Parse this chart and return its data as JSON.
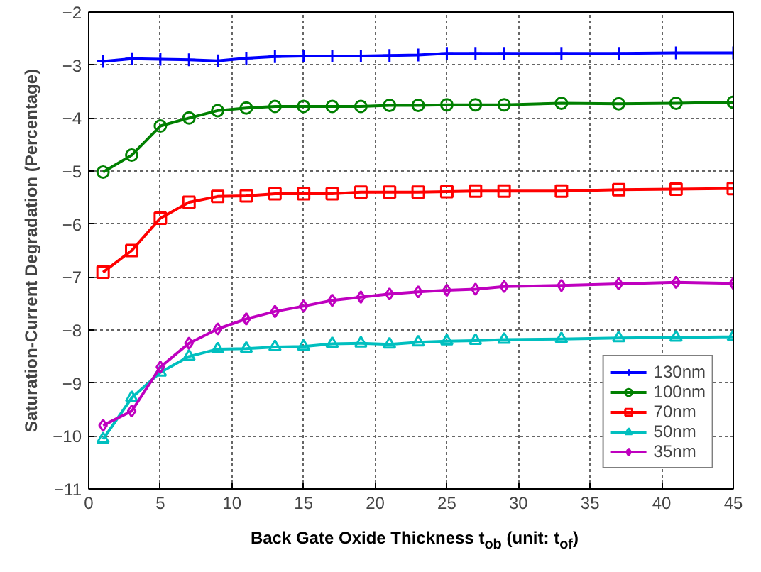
{
  "chart_data": {
    "type": "line",
    "xlabel": "Back Gate Oxide Thickness t$_{ob}$ (unit: t$_{of}$)",
    "ylabel": "Saturation-Current Degradation (Percentage)",
    "x": [
      1,
      3,
      5,
      7,
      9,
      11,
      13,
      15,
      17,
      19,
      21,
      23,
      25,
      27,
      29,
      33,
      37,
      41,
      45
    ],
    "xlim": [
      0,
      45
    ],
    "xticks": [
      0,
      5,
      10,
      15,
      20,
      25,
      30,
      35,
      40,
      45
    ],
    "ylim": [
      -11,
      -2
    ],
    "yticks": [
      -11,
      -10,
      -9,
      -8,
      -7,
      -6,
      -5,
      -4,
      -3,
      -2
    ],
    "grid": true,
    "legend": "bottom right",
    "line_style": "solid",
    "series": [
      {
        "name": "130nm",
        "color": "#0000ff",
        "marker": "cross",
        "values": [
          -2.93,
          -2.88,
          -2.89,
          -2.9,
          -2.92,
          -2.87,
          -2.84,
          -2.83,
          -2.83,
          -2.83,
          -2.82,
          -2.81,
          -2.78,
          -2.78,
          -2.78,
          -2.78,
          -2.78,
          -2.77,
          -2.77
        ]
      },
      {
        "name": "100nm",
        "color": "#008000",
        "marker": "circle",
        "values": [
          -5.02,
          -4.7,
          -4.15,
          -4.0,
          -3.86,
          -3.81,
          -3.78,
          -3.78,
          -3.78,
          -3.78,
          -3.76,
          -3.76,
          -3.75,
          -3.75,
          -3.75,
          -3.72,
          -3.73,
          -3.72,
          -3.7
        ]
      },
      {
        "name": "70nm",
        "color": "#ff0000",
        "marker": "square",
        "values": [
          -6.91,
          -6.5,
          -5.89,
          -5.59,
          -5.48,
          -5.47,
          -5.43,
          -5.43,
          -5.43,
          -5.4,
          -5.4,
          -5.4,
          -5.39,
          -5.38,
          -5.38,
          -5.38,
          -5.35,
          -5.34,
          -5.33
        ]
      },
      {
        "name": "50nm",
        "color": "#00bfbf",
        "marker": "triangle",
        "values": [
          -10.06,
          -9.28,
          -8.8,
          -8.5,
          -8.36,
          -8.35,
          -8.32,
          -8.31,
          -8.26,
          -8.25,
          -8.27,
          -8.23,
          -8.21,
          -8.2,
          -8.18,
          -8.17,
          -8.15,
          -8.14,
          -8.13
        ]
      },
      {
        "name": "35nm",
        "color": "#bf00bf",
        "marker": "diamond",
        "values": [
          -9.8,
          -9.53,
          -8.7,
          -8.25,
          -7.98,
          -7.79,
          -7.65,
          -7.55,
          -7.44,
          -7.38,
          -7.32,
          -7.28,
          -7.25,
          -7.23,
          -7.18,
          -7.16,
          -7.13,
          -7.1,
          -7.12
        ]
      }
    ]
  }
}
